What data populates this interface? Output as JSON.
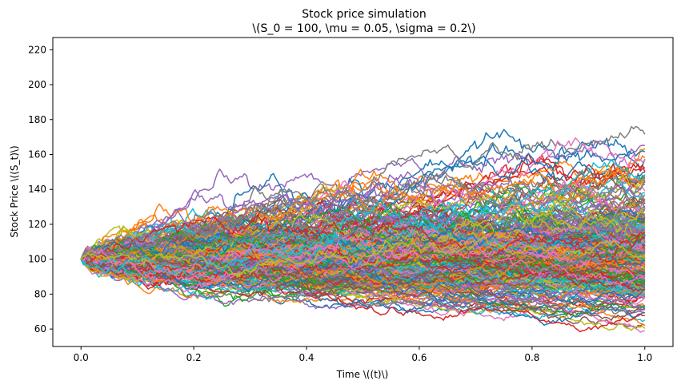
{
  "chart_data": {
    "type": "line",
    "title": "Stock price simulation",
    "subtitle": "\\(S_0 = 100, \\mu = 0.05, \\sigma = 0.2\\)",
    "xlabel": "Time \\((t)\\)",
    "ylabel": "Stock Price \\((S_t)\\)",
    "xlim": [
      -0.05,
      1.05
    ],
    "ylim": [
      50,
      227
    ],
    "x_ticks": [
      0.0,
      0.2,
      0.4,
      0.6,
      0.8,
      1.0
    ],
    "x_tick_labels": [
      "0.0",
      "0.2",
      "0.4",
      "0.6",
      "0.8",
      "1.0"
    ],
    "y_ticks": [
      60,
      80,
      100,
      120,
      140,
      160,
      180,
      200,
      220
    ],
    "y_tick_labels": [
      "60",
      "80",
      "100",
      "120",
      "140",
      "160",
      "180",
      "200",
      "220"
    ],
    "grid": false,
    "legend": "none",
    "simulation": {
      "S0": 100,
      "mu": 0.05,
      "sigma": 0.2,
      "n_paths": 300,
      "n_steps": 252,
      "t_end": 1.0
    },
    "series_colors": [
      "#1f77b4",
      "#ff7f0e",
      "#2ca02c",
      "#d62728",
      "#9467bd",
      "#8c564b",
      "#e377c2",
      "#7f7f7f",
      "#bcbd22",
      "#17becf"
    ]
  }
}
